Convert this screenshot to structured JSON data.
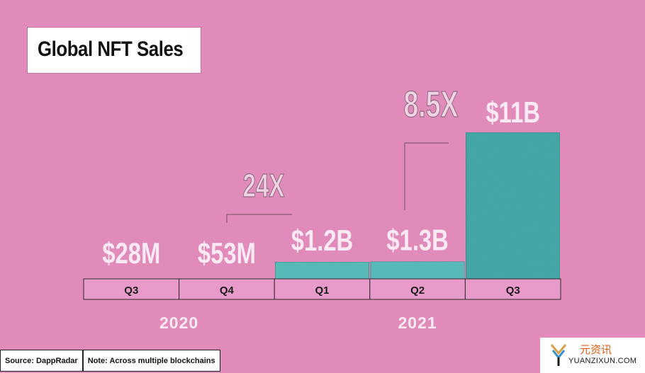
{
  "chart_data": {
    "type": "bar",
    "title": "Global NFT Sales",
    "categories": [
      "Q3",
      "Q4",
      "Q1",
      "Q2",
      "Q3"
    ],
    "years": [
      {
        "label": "2020",
        "quarters": [
          "Q3",
          "Q4"
        ]
      },
      {
        "label": "2021",
        "quarters": [
          "Q1",
          "Q2",
          "Q3"
        ]
      }
    ],
    "values": [
      0.028,
      0.053,
      1.2,
      1.3,
      11
    ],
    "units": "USD billions",
    "value_labels": [
      "$28M",
      "$53M",
      "$1.2B",
      "$1.3B",
      "$11B"
    ],
    "annotations": [
      {
        "text": "24X",
        "from_index": 1,
        "to_index": 2
      },
      {
        "text": "8.5X",
        "from_index": 3,
        "to_index": 4
      }
    ],
    "ylim": [
      0,
      11
    ],
    "xlabel": "",
    "ylabel": "",
    "grid": false,
    "legend": "none"
  },
  "footer": {
    "source": "Source: DappRadar",
    "note": "Note: Across multiple blockchains"
  },
  "watermark": {
    "cn": "元资讯",
    "en": "YUANZIXUN.COM",
    "icon": "yuanzixun-logo-icon"
  },
  "colors": {
    "background": "#e18bbb",
    "bar_fill": "#3ba8a8",
    "bar_fill_light": "#58c2c0",
    "axis_cell": "#e89acb",
    "label_white": "#fbe9f3",
    "multiplier_text": "#f2d3e4",
    "multiplier_stroke": "#8e6a82",
    "watermark_orange": "#e05a10"
  }
}
